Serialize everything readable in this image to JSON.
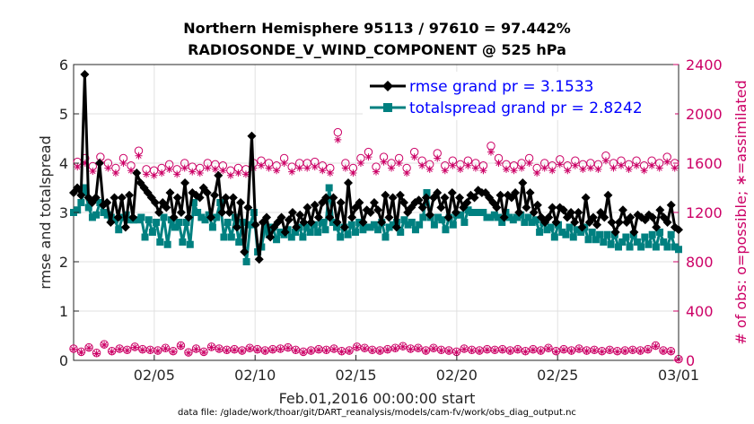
{
  "chart_data": {
    "type": "line",
    "title": "Northern Hemisphere 95113 / 97610 = 97.442%",
    "subtitle": "RADIOSONDE_V_WIND_COMPONENT @ 525 hPa",
    "xlabel": "Feb.01,2016 00:00:00 start",
    "ylabel_left": "rmse and totalspread",
    "ylabel_right": "# of obs: o=possible; ∗=assimilated",
    "footnote": "data file: /glade/work/thoar/git/DART_reanalysis/models/cam-fv/work/obs_diag_output.nc",
    "xlim": [
      1,
      31
    ],
    "ylim_left": [
      0,
      6
    ],
    "ylim_right": [
      0,
      2400
    ],
    "x_ticks": [
      {
        "x": 5,
        "label": "02/05"
      },
      {
        "x": 10,
        "label": "02/10"
      },
      {
        "x": 15,
        "label": "02/15"
      },
      {
        "x": 20,
        "label": "02/20"
      },
      {
        "x": 25,
        "label": "02/25"
      },
      {
        "x": 31,
        "label": "03/01"
      }
    ],
    "y_ticks_left": [
      "0",
      "1",
      "2",
      "3",
      "4",
      "5",
      "6"
    ],
    "y_ticks_right": [
      "0",
      "400",
      "800",
      "1200",
      "1600",
      "2000",
      "2400"
    ],
    "grid": true,
    "legend_position": "top-right",
    "series": [
      {
        "name": "rmse grand pr = 3.1533",
        "color": "#000000",
        "marker": "diamond",
        "axis": "left",
        "values": [
          3.4,
          3.5,
          3.35,
          5.8,
          3.3,
          3.2,
          3.3,
          4.0,
          3.15,
          3.2,
          2.8,
          3.3,
          2.9,
          3.3,
          2.7,
          3.35,
          2.9,
          3.8,
          3.6,
          3.5,
          3.4,
          3.3,
          3.2,
          3.0,
          3.2,
          3.1,
          3.4,
          2.9,
          3.3,
          3.0,
          3.6,
          2.9,
          3.4,
          3.35,
          3.3,
          3.5,
          3.4,
          2.9,
          3.35,
          3.75,
          3.0,
          3.3,
          3.0,
          3.3,
          2.7,
          3.2,
          2.2,
          3.1,
          4.55,
          2.75,
          2.05,
          2.8,
          2.9,
          2.5,
          2.7,
          2.8,
          2.9,
          2.6,
          2.85,
          3.0,
          2.7,
          2.95,
          2.8,
          3.1,
          2.8,
          3.15,
          2.9,
          3.2,
          3.3,
          2.9,
          3.3,
          2.8,
          3.2,
          2.7,
          3.6,
          2.9,
          3.1,
          3.2,
          2.8,
          3.05,
          3.0,
          3.2,
          3.05,
          2.8,
          3.35,
          2.9,
          3.3,
          2.7,
          3.35,
          3.2,
          3.0,
          3.1,
          3.2,
          3.25,
          3.1,
          3.3,
          2.95,
          3.3,
          3.4,
          3.1,
          3.3,
          2.9,
          3.4,
          3.0,
          3.3,
          3.1,
          3.2,
          3.35,
          3.3,
          3.45,
          3.4,
          3.4,
          3.3,
          3.2,
          3.1,
          3.35,
          2.9,
          3.35,
          3.3,
          3.4,
          3.0,
          3.6,
          3.1,
          3.4,
          3.0,
          3.15,
          2.9,
          2.8,
          2.9,
          3.1,
          2.8,
          3.1,
          3.05,
          2.9,
          3.0,
          2.8,
          3.0,
          2.7,
          3.3,
          2.8,
          2.9,
          2.75,
          3.0,
          2.9,
          3.35,
          2.8,
          2.6,
          2.8,
          3.05,
          2.8,
          2.9,
          2.6,
          2.95,
          2.9,
          2.85,
          2.95,
          2.9,
          2.7,
          3.05,
          2.9,
          2.8,
          3.15,
          2.7,
          2.65
        ]
      },
      {
        "name": "totalspread grand pr = 2.8242",
        "color": "#008080",
        "marker": "square",
        "axis": "left",
        "values": [
          3.0,
          3.05,
          3.2,
          3.5,
          3.1,
          2.9,
          2.95,
          3.2,
          3.0,
          2.95,
          2.9,
          2.85,
          2.65,
          2.9,
          2.95,
          2.85,
          2.85,
          2.85,
          2.9,
          2.5,
          2.85,
          2.6,
          2.8,
          2.4,
          2.9,
          2.35,
          2.85,
          2.7,
          2.8,
          2.4,
          2.8,
          2.35,
          3.2,
          3.0,
          2.9,
          2.85,
          2.95,
          2.7,
          2.9,
          3.2,
          2.5,
          2.8,
          2.5,
          2.9,
          2.4,
          2.8,
          2.0,
          2.75,
          3.0,
          2.2,
          2.3,
          2.7,
          2.55,
          2.7,
          2.45,
          2.6,
          2.55,
          2.65,
          2.5,
          2.6,
          2.7,
          2.5,
          2.7,
          2.6,
          2.75,
          2.6,
          2.8,
          2.65,
          3.5,
          2.8,
          2.7,
          2.5,
          2.7,
          2.55,
          2.75,
          2.6,
          2.8,
          2.65,
          2.7,
          2.7,
          2.75,
          2.65,
          2.8,
          2.5,
          2.7,
          2.75,
          2.8,
          2.6,
          2.85,
          2.75,
          2.8,
          2.65,
          2.75,
          2.9,
          3.4,
          2.9,
          2.75,
          2.9,
          2.85,
          2.65,
          2.9,
          2.75,
          2.95,
          2.95,
          2.8,
          3.05,
          3.0,
          3.0,
          3.0,
          3.0,
          2.9,
          2.9,
          2.95,
          2.9,
          2.8,
          3.0,
          2.9,
          2.85,
          2.9,
          2.95,
          2.8,
          2.9,
          2.8,
          2.85,
          2.6,
          2.8,
          2.65,
          2.7,
          2.5,
          2.75,
          2.6,
          2.55,
          2.7,
          2.5,
          2.65,
          2.6,
          2.7,
          2.45,
          2.6,
          2.45,
          2.55,
          2.4,
          2.55,
          2.35,
          2.55,
          2.3,
          2.4,
          2.5,
          2.3,
          2.55,
          2.4,
          2.3,
          2.5,
          2.35,
          2.55,
          2.3,
          2.6,
          2.4,
          2.3,
          2.55,
          2.3,
          2.25
        ]
      },
      {
        "name": "obs possible",
        "color": "#cc0066",
        "marker": "circle",
        "axis": "right",
        "values": [
          95,
          1610,
          70,
          1640,
          105,
          1575,
          60,
          1650,
          130,
          1600,
          75,
          1560,
          95,
          1640,
          85,
          1580,
          110,
          1700,
          90,
          1550,
          85,
          1540,
          80,
          1560,
          100,
          1590,
          75,
          1550,
          120,
          1600,
          65,
          1570,
          95,
          1560,
          70,
          1600,
          110,
          1590,
          95,
          1580,
          85,
          1540,
          90,
          1560,
          80,
          1550,
          100,
          1600,
          90,
          1620,
          80,
          1600,
          90,
          1580,
          95,
          1640,
          105,
          1570,
          85,
          1600,
          70,
          1600,
          80,
          1610,
          90,
          1580,
          85,
          1560,
          95,
          1850,
          75,
          1600,
          80,
          1560,
          110,
          1640,
          100,
          1690,
          85,
          1570,
          80,
          1650,
          90,
          1600,
          100,
          1640,
          115,
          1560,
          95,
          1690,
          100,
          1620,
          80,
          1590,
          100,
          1680,
          85,
          1580,
          80,
          1620,
          70,
          1590,
          95,
          1620,
          85,
          1600,
          80,
          1580,
          90,
          1740,
          85,
          1640,
          90,
          1590,
          80,
          1580,
          90,
          1600,
          75,
          1640,
          90,
          1560,
          80,
          1600,
          100,
          1580,
          75,
          1630,
          90,
          1580,
          80,
          1620,
          95,
          1590,
          80,
          1600,
          85,
          1590,
          75,
          1660,
          85,
          1600,
          75,
          1620,
          80,
          1590,
          85,
          1620,
          80,
          1580,
          90,
          1620,
          120,
          1600,
          80,
          1650,
          75,
          1600,
          10
        ]
      },
      {
        "name": "obs assimilated",
        "color": "#cc0066",
        "marker": "asterisk",
        "axis": "right",
        "values": [
          90,
          1570,
          65,
          1600,
          100,
          1535,
          55,
          1610,
          125,
          1560,
          70,
          1520,
          90,
          1600,
          80,
          1540,
          105,
          1660,
          85,
          1510,
          80,
          1500,
          75,
          1520,
          95,
          1550,
          70,
          1510,
          115,
          1560,
          60,
          1530,
          90,
          1520,
          65,
          1560,
          105,
          1550,
          90,
          1540,
          80,
          1500,
          85,
          1520,
          75,
          1510,
          95,
          1560,
          85,
          1580,
          75,
          1560,
          85,
          1540,
          90,
          1600,
          100,
          1530,
          80,
          1560,
          65,
          1560,
          75,
          1570,
          85,
          1540,
          80,
          1520,
          90,
          1790,
          70,
          1560,
          75,
          1520,
          105,
          1600,
          95,
          1650,
          80,
          1530,
          75,
          1610,
          85,
          1560,
          95,
          1600,
          110,
          1520,
          90,
          1650,
          95,
          1580,
          75,
          1550,
          95,
          1640,
          80,
          1540,
          75,
          1580,
          65,
          1550,
          90,
          1580,
          80,
          1560,
          75,
          1540,
          85,
          1690,
          80,
          1600,
          85,
          1550,
          75,
          1540,
          85,
          1560,
          70,
          1600,
          85,
          1520,
          75,
          1560,
          95,
          1540,
          70,
          1590,
          85,
          1540,
          75,
          1580,
          90,
          1550,
          75,
          1560,
          80,
          1550,
          70,
          1620,
          80,
          1560,
          70,
          1580,
          75,
          1550,
          80,
          1580,
          75,
          1540,
          85,
          1580,
          115,
          1560,
          75,
          1610,
          70,
          1560,
          8
        ]
      }
    ]
  }
}
